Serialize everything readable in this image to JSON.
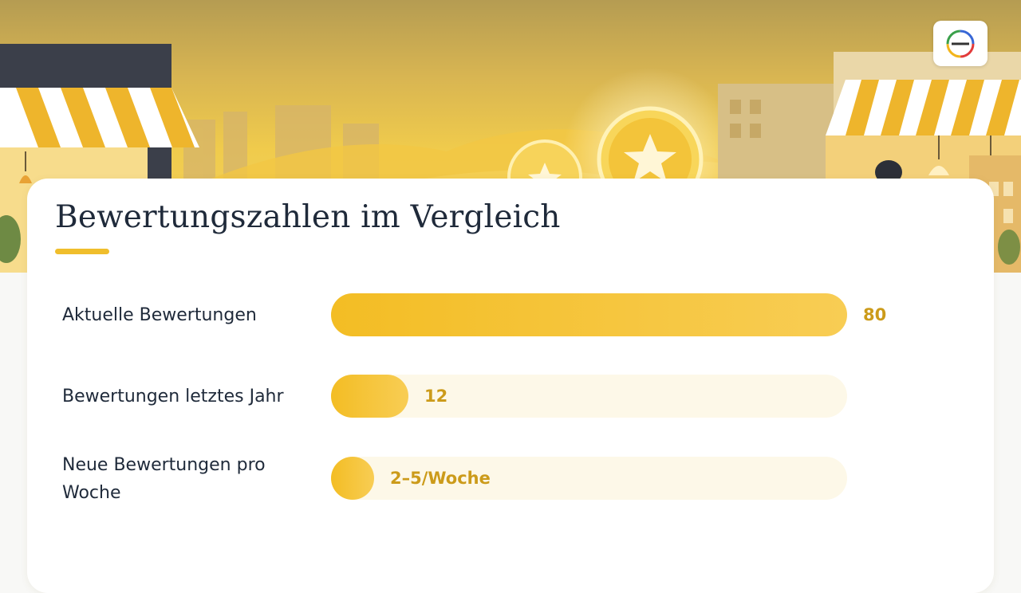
{
  "title": "Bewertungszahlen im Vergleich",
  "colors": {
    "accent": "#f0be2c",
    "bar_start": "#f3bd24",
    "bar_end": "#f8cd54",
    "track": "#fdf8e8",
    "value_text": "#cc9b1a",
    "text": "#1f2a3a"
  },
  "logo": {
    "icon": "circular-logo-icon"
  },
  "chart_data": {
    "type": "bar",
    "orientation": "horizontal",
    "title": "Bewertungszahlen im Vergleich",
    "xlim": [
      0,
      80
    ],
    "categories": [
      "Aktuelle Bewertungen",
      "Bewertungen letztes Jahr",
      "Neue Bewertungen pro Woche"
    ],
    "values": [
      80,
      12,
      5
    ],
    "value_labels": [
      "80",
      "12",
      "2–5/Woche"
    ]
  }
}
